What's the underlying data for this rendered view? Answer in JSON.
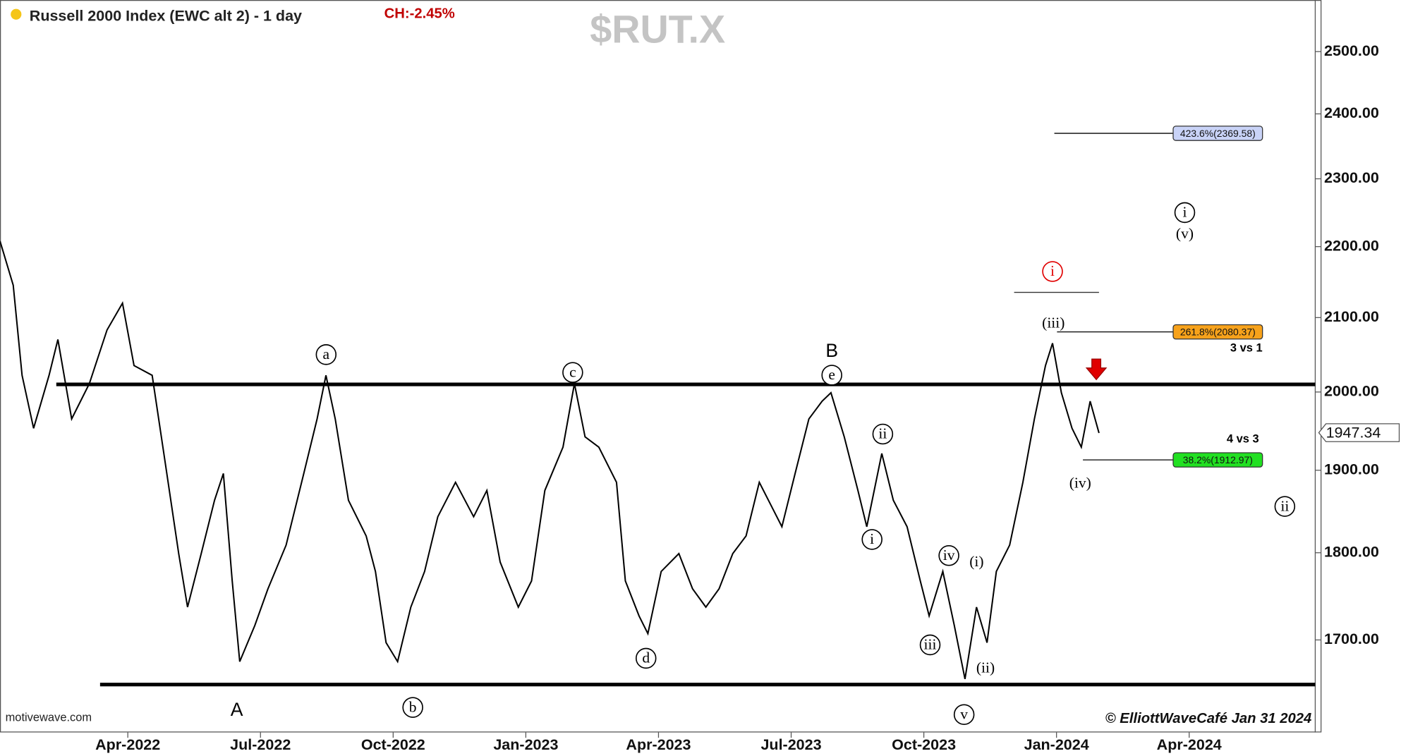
{
  "chart_data": {
    "type": "line",
    "title": "Russell 2000 Index (EWC alt 2) - 1 day",
    "change_label": "CH:-2.45%",
    "symbol": "$RUT.X",
    "watermark": "motivewave.com",
    "copyright": "© ElliottWaveCafé Jan 31 2024",
    "color": "#000000",
    "log_scale": true,
    "x": [
      0.11,
      0.41,
      0.61,
      0.87,
      1.22,
      1.42,
      1.73,
      2.13,
      2.53,
      2.88,
      3.14,
      3.55,
      3.85,
      4.15,
      4.35,
      4.66,
      4.96,
      5.16,
      5.36,
      5.53,
      5.87,
      6.17,
      6.58,
      6.98,
      7.28,
      7.48,
      7.69,
      7.99,
      8.39,
      8.6,
      8.84,
      9.1,
      9.4,
      9.71,
      10.01,
      10.41,
      10.82,
      11.12,
      11.42,
      11.83,
      12.13,
      12.43,
      12.84,
      13.1,
      13.34,
      13.65,
      14.05,
      14.25,
      14.56,
      14.76,
      15.06,
      15.46,
      15.77,
      16.07,
      16.37,
      16.68,
      16.98,
      17.28,
      17.59,
      17.79,
      18.09,
      18.4,
      18.7,
      18.9,
      19.2,
      19.51,
      19.71,
      20.05,
      20.31,
      20.62,
      20.92,
      21.12,
      21.43,
      21.69,
      21.93,
      22.19,
      22.43,
      22.64,
      22.94,
      23.24,
      23.5,
      23.75,
      23.91,
      24.11,
      24.35,
      24.56,
      24.76,
      24.96
    ],
    "values": [
      2208,
      2145,
      2022,
      1953,
      2022,
      2070,
      1965,
      2011,
      2083,
      2120,
      2035,
      2022,
      1908,
      1799,
      1737,
      1799,
      1863,
      1896,
      1767,
      1676,
      1716,
      1758,
      1809,
      1896,
      1965,
      2022,
      1965,
      1863,
      1820,
      1778,
      1697,
      1676,
      1737,
      1778,
      1843,
      1885,
      1843,
      1875,
      1789,
      1737,
      1767,
      1875,
      1929,
      2011,
      1942,
      1929,
      1885,
      1767,
      1727,
      1707,
      1778,
      1799,
      1758,
      1737,
      1758,
      1799,
      1820,
      1885,
      1852,
      1831,
      1896,
      1965,
      1988,
      1999,
      1942,
      1875,
      1831,
      1921,
      1863,
      1831,
      1767,
      1727,
      1778,
      1716,
      1657,
      1737,
      1697,
      1778,
      1809,
      1885,
      1965,
      2035,
      2065,
      1999,
      1953,
      1929,
      1988,
      1947
    ],
    "xlim": [
      0.11,
      29.85
    ],
    "xticks": [
      {
        "value": 3,
        "label": "Apr-2022"
      },
      {
        "value": 6,
        "label": "Jul-2022"
      },
      {
        "value": 9,
        "label": "Oct-2022"
      },
      {
        "value": 12,
        "label": "Jan-2023"
      },
      {
        "value": 15,
        "label": "Apr-2023"
      },
      {
        "value": 18,
        "label": "Jul-2023"
      },
      {
        "value": 21,
        "label": "Oct-2023"
      },
      {
        "value": 24,
        "label": "Jan-2024"
      },
      {
        "value": 27,
        "label": "Apr-2024"
      }
    ],
    "ylim": [
      1600,
      2586
    ],
    "yticks": [
      {
        "value": 1700,
        "label": "1700.00"
      },
      {
        "value": 1800,
        "label": "1800.00"
      },
      {
        "value": 1900,
        "label": "1900.00"
      },
      {
        "value": 2000,
        "label": "2000.00"
      },
      {
        "value": 2100,
        "label": "2100.00"
      },
      {
        "value": 2200,
        "label": "2200.00"
      },
      {
        "value": 2300,
        "label": "2300.00"
      },
      {
        "value": 2400,
        "label": "2400.00"
      },
      {
        "value": 2500,
        "label": "2500.00"
      }
    ],
    "last_price": 1947.34,
    "levels": [
      2010,
      1651,
      2135
    ],
    "fib_levels": [
      {
        "value": 2369.58,
        "label": "423.6%(2369.58)",
        "color": "#c9d3f7"
      },
      {
        "value": 2080.37,
        "label": "261.8%(2080.37)",
        "color": "#f7a21b"
      },
      {
        "value": 1912.97,
        "label": "38.2%(1912.97)",
        "color": "#22e022"
      }
    ],
    "notes": [
      "3 vs 1",
      "4 vs 3"
    ],
    "annotations": [
      "a",
      "b",
      "c",
      "d",
      "e",
      "B",
      "A",
      "i",
      "ii",
      "iii",
      "iv",
      "v",
      "(i)",
      "(ii)",
      "(iii)",
      "(iv)",
      "i",
      "i",
      "(v)",
      "ii"
    ]
  }
}
